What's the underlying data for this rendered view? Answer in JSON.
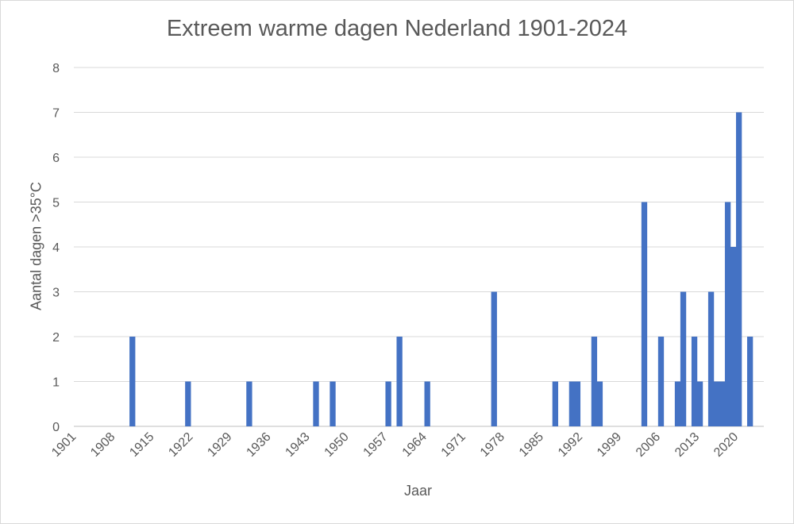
{
  "chart_data": {
    "type": "bar",
    "title": "Extreem warme dagen Nederland 1901-2024",
    "xlabel": "Jaar",
    "ylabel": "Aantal dagen >35°C",
    "ylim": [
      0,
      8
    ],
    "yticks": [
      0,
      1,
      2,
      3,
      4,
      5,
      6,
      7,
      8
    ],
    "x_start": 1901,
    "x_end": 2024,
    "xticks": [
      1901,
      1908,
      1915,
      1922,
      1929,
      1936,
      1943,
      1950,
      1957,
      1964,
      1971,
      1978,
      1985,
      1992,
      1999,
      2006,
      2013,
      2020
    ],
    "grid": true,
    "legend": "none",
    "colors": {
      "bar": "#4472c4",
      "grid": "#d9d9d9",
      "text": "#595959"
    },
    "series": [
      {
        "x": [
          1911,
          1921,
          1932,
          1944,
          1947,
          1957,
          1959,
          1964,
          1976,
          1987,
          1990,
          1991,
          1994,
          1995,
          2003,
          2006,
          2009,
          2010,
          2012,
          2013,
          2015,
          2016,
          2017,
          2018,
          2019,
          2020,
          2022
        ],
        "values": [
          2,
          1,
          1,
          1,
          1,
          1,
          2,
          1,
          3,
          1,
          1,
          1,
          2,
          1,
          5,
          2,
          1,
          3,
          2,
          1,
          3,
          1,
          1,
          5,
          4,
          7,
          2
        ]
      }
    ]
  }
}
